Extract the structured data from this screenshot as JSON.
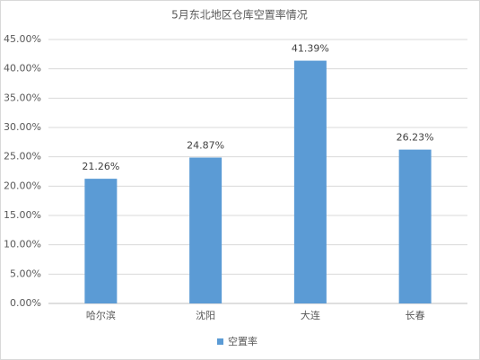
{
  "chart_data": {
    "type": "bar",
    "title": "5月东北地区仓库空置率情况",
    "categories": [
      "哈尔滨",
      "沈阳",
      "大连",
      "长春"
    ],
    "series": [
      {
        "name": "空置率",
        "color": "#5b9bd5",
        "values": [
          21.26,
          24.87,
          41.39,
          26.23
        ],
        "value_labels": [
          "21.26%",
          "24.87%",
          "41.39%",
          "26.23%"
        ]
      }
    ],
    "ylim": [
      0,
      45
    ],
    "yticks": [
      {
        "value": 0,
        "label": "0.00%"
      },
      {
        "value": 5,
        "label": "5.00%"
      },
      {
        "value": 10,
        "label": "10.00%"
      },
      {
        "value": 15,
        "label": "15.00%"
      },
      {
        "value": 20,
        "label": "20.00%"
      },
      {
        "value": 25,
        "label": "25.00%"
      },
      {
        "value": 30,
        "label": "30.00%"
      },
      {
        "value": 35,
        "label": "35.00%"
      },
      {
        "value": 40,
        "label": "40.00%"
      },
      {
        "value": 45,
        "label": "45.00%"
      }
    ],
    "grid": true,
    "legend": "bottom"
  }
}
